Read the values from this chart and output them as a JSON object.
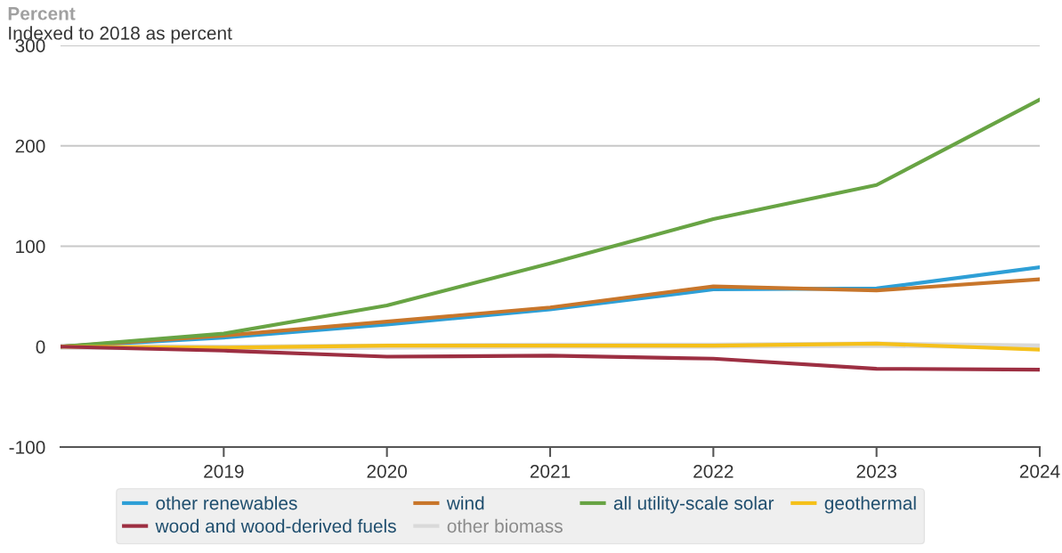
{
  "chart_data": {
    "type": "line",
    "title": "Percent",
    "subtitle": "Indexed to 2018 as percent",
    "x": [
      2018,
      2019,
      2020,
      2021,
      2022,
      2023,
      2024
    ],
    "xlim": [
      2018,
      2024
    ],
    "xticks": [
      2019,
      2020,
      2021,
      2022,
      2023,
      2024
    ],
    "ylim": [
      -100,
      300
    ],
    "yticks": [
      -100,
      0,
      100,
      200,
      300
    ],
    "grid": "y",
    "legend": "bottom",
    "marker": "none",
    "line_style": "solid",
    "series": [
      {
        "name": "other biomass",
        "color": "#d9d9d9",
        "values": [
          0,
          -1,
          0,
          1,
          1,
          2,
          0
        ]
      },
      {
        "name": "other renewables",
        "color": "#2e9fd6",
        "values": [
          0,
          9,
          22,
          37,
          57,
          58,
          79
        ]
      },
      {
        "name": "wind",
        "color": "#c8762b",
        "values": [
          0,
          11,
          25,
          39,
          60,
          56,
          67
        ]
      },
      {
        "name": "all utility-scale solar",
        "color": "#68a444",
        "values": [
          0,
          13,
          41,
          83,
          127,
          161,
          246
        ]
      },
      {
        "name": "geothermal",
        "color": "#f5c01a",
        "values": [
          0,
          -1,
          1,
          1,
          1,
          3,
          -3
        ]
      },
      {
        "name": "wood and wood-derived fuels",
        "color": "#9d2f42",
        "values": [
          0,
          -4,
          -10,
          -9,
          -12,
          -22,
          -23
        ]
      }
    ]
  }
}
